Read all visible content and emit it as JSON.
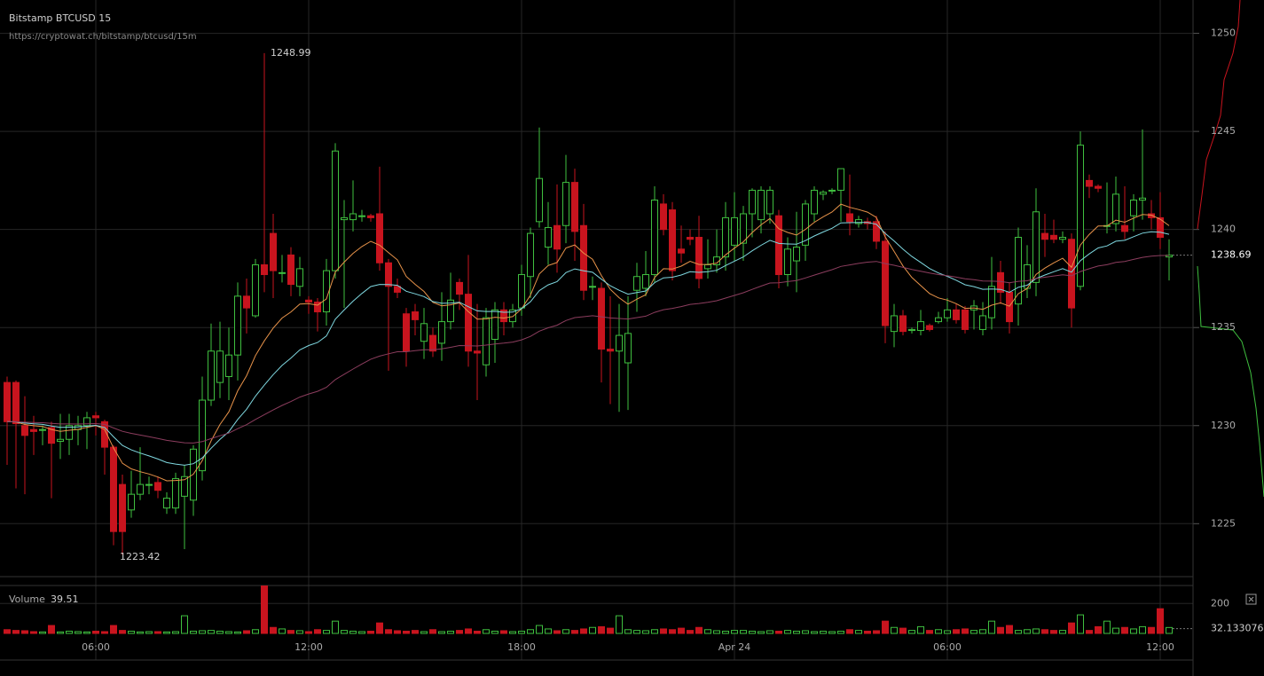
{
  "chart_data": {
    "type": "candlestick",
    "title": "Bitstamp BTCUSD 15",
    "subtitle": "https://cryptowat.ch/bitstamp/btcusd/15m",
    "categories": [
      null,
      null,
      null,
      null,
      null,
      null,
      null,
      null,
      null,
      null,
      "06:00",
      null,
      null,
      null,
      null,
      null,
      null,
      null,
      null,
      null,
      null,
      null,
      null,
      null,
      null,
      null,
      null,
      null,
      null,
      null,
      null,
      null,
      null,
      null,
      "12:00",
      null,
      null,
      null,
      null,
      null,
      null,
      null,
      null,
      null,
      null,
      null,
      null,
      null,
      null,
      null,
      null,
      null,
      null,
      null,
      null,
      null,
      null,
      null,
      "18:00",
      null,
      null,
      null,
      null,
      null,
      null,
      null,
      null,
      null,
      null,
      null,
      null,
      null,
      null,
      null,
      null,
      null,
      null,
      null,
      null,
      null,
      null,
      null,
      "Apr 24",
      null,
      null,
      null,
      null,
      null,
      null,
      null,
      null,
      null,
      null,
      null,
      null,
      null,
      null,
      null,
      null,
      null,
      null,
      null,
      null,
      null,
      null,
      null,
      "06:00",
      null,
      null,
      null,
      null,
      null,
      null,
      null,
      null,
      null,
      null,
      null,
      null,
      null,
      null,
      null,
      null,
      null,
      null,
      null,
      null,
      null,
      null,
      null,
      "12:00",
      null
    ],
    "open": [
      1232.2,
      1232.2,
      1230,
      1229.8,
      1229.8,
      1229.9,
      1229.2,
      1229.3,
      1229.8,
      1230,
      1230.5,
      1230.2,
      1228.9,
      1227,
      1225.7,
      1226.5,
      1227,
      1227.1,
      1225.8,
      1225.8,
      1226.4,
      1226.2,
      1227.7,
      1231.3,
      1232.2,
      1232.5,
      1233.6,
      1236.6,
      1235.6,
      1238.2,
      1239.8,
      1237.8,
      1238.7,
      1237.1,
      1236.4,
      1236.3,
      1235.8,
      1237.9,
      1240.5,
      1240.5,
      1240.7,
      1240.7,
      1240.8,
      1238.3,
      1237.1,
      1235.7,
      1235.8,
      1234.3,
      1234.6,
      1234.2,
      1235.3,
      1237.3,
      1236.7,
      1233.8,
      1233.1,
      1234.4,
      1235.9,
      1235.3,
      1236,
      1237.6,
      1240.4,
      1239.1,
      1240.2,
      1240.2,
      1242.4,
      1240.2,
      1237.1,
      1237,
      1233.9,
      1233.8,
      1233.2,
      1236.9,
      1237,
      1237.7,
      1241.3,
      1241,
      1239,
      1239.6,
      1239.6,
      1238,
      1238.2,
      1238.6,
      1239.2,
      1239.3,
      1240.8,
      1240.5,
      1240.8,
      1240.7,
      1237.7,
      1238.4,
      1239.2,
      1240.8,
      1241.8,
      1242,
      1242,
      1240.8,
      1240.3,
      1240.4,
      1240.4,
      1239.4,
      1234.8,
      1235.6,
      1234.85,
      1234.85,
      1235.1,
      1235.3,
      1235.5,
      1235.9,
      1235.9,
      1235.9,
      1234.9,
      1235.5,
      1237.8,
      1236.8,
      1236.2,
      1237,
      1237.3,
      1239.8,
      1239.7,
      1239.5,
      1239.5,
      1237.1,
      1242.5,
      1242.2,
      1240.2,
      1240.3,
      1240.2,
      1240.7,
      1241.5,
      1240.8,
      1240.6,
      1238.6
    ],
    "high": [
      1232.5,
      1232.3,
      1231.5,
      1230.5,
      1230,
      1230.2,
      1230.6,
      1230.6,
      1230.5,
      1230.7,
      1230.7,
      1230.3,
      1229,
      1227.5,
      1227.7,
      1228.9,
      1227.4,
      1227.4,
      1226.6,
      1227.6,
      1228,
      1229,
      1232.5,
      1235.2,
      1235.3,
      1235,
      1237.3,
      1237.5,
      1238.5,
      1248.99,
      1240.8,
      1238.7,
      1239.1,
      1238.6,
      1236.6,
      1236.5,
      1238.5,
      1244.4,
      1241.5,
      1242.5,
      1241,
      1240.8,
      1243.2,
      1238.5,
      1237.5,
      1236,
      1236.2,
      1236,
      1235,
      1236.8,
      1237.8,
      1237.5,
      1238.7,
      1236.2,
      1236,
      1236.3,
      1236.3,
      1236.2,
      1238.2,
      1240.1,
      1245.2,
      1241.4,
      1242.3,
      1243.8,
      1243.1,
      1241.3,
      1237.6,
      1237.3,
      1236.6,
      1236.2,
      1236.6,
      1238.3,
      1238.9,
      1242.2,
      1241.8,
      1241.4,
      1240.2,
      1240,
      1240.7,
      1239.5,
      1240,
      1241.4,
      1241.9,
      1241.2,
      1242.1,
      1242.2,
      1242.2,
      1241,
      1239.6,
      1240.9,
      1241.5,
      1242.2,
      1242,
      1242.1,
      1243.1,
      1242.8,
      1240.7,
      1240.6,
      1240.7,
      1239.9,
      1236.2,
      1235.9,
      1235,
      1235.9,
      1235.2,
      1235.8,
      1236.5,
      1236.2,
      1236.1,
      1236.4,
      1236.3,
      1238.6,
      1238.4,
      1237.3,
      1240.1,
      1239.2,
      1242.1,
      1240.8,
      1240.5,
      1239.9,
      1239.8,
      1245,
      1242.8,
      1242.3,
      1242.4,
      1242.7,
      1242.2,
      1241.8,
      1245.1,
      1241.5,
      1241.9,
      1239.5
    ],
    "low": [
      1228,
      1226.8,
      1226.5,
      1228.5,
      1229,
      1226.3,
      1228.3,
      1228.5,
      1229,
      1228.8,
      1229.5,
      1227.5,
      1223.9,
      1223.42,
      1225.3,
      1226.2,
      1226.5,
      1226.3,
      1225.5,
      1225.5,
      1223.7,
      1225.4,
      1227.2,
      1231,
      1231.4,
      1231.3,
      1232.3,
      1234.7,
      1235.5,
      1236.8,
      1236.5,
      1237.3,
      1236.6,
      1236.6,
      1235.7,
      1234.8,
      1235.1,
      1237.5,
      1236,
      1239.9,
      1240.4,
      1240.4,
      1237.9,
      1232.8,
      1236.5,
      1233,
      1234.6,
      1233.4,
      1233.5,
      1233.3,
      1234.9,
      1235.9,
      1233,
      1231.3,
      1232.5,
      1233.2,
      1234.6,
      1235,
      1235.6,
      1236.5,
      1240.1,
      1238.2,
      1237.8,
      1239.3,
      1238.4,
      1236.4,
      1236.4,
      1232.2,
      1231.1,
      1230.7,
      1230.8,
      1235.8,
      1236.6,
      1237.3,
      1239.7,
      1237.4,
      1238.3,
      1239.2,
      1237,
      1237.5,
      1237.8,
      1237.9,
      1238.4,
      1238.4,
      1239.6,
      1239.8,
      1240.3,
      1237,
      1237.1,
      1236.8,
      1238.4,
      1240.4,
      1241.5,
      1241.8,
      1240.4,
      1239.7,
      1240.1,
      1240,
      1239,
      1234.2,
      1234,
      1234.6,
      1234.7,
      1234.6,
      1234.8,
      1235.2,
      1235.3,
      1235.2,
      1234.7,
      1234.9,
      1234.6,
      1234.9,
      1236.2,
      1234.7,
      1235.1,
      1236.5,
      1236.6,
      1238.6,
      1239.3,
      1239.3,
      1235,
      1236.9,
      1241.6,
      1241.9,
      1239.8,
      1239.9,
      1239.5,
      1239.9,
      1240.5,
      1240,
      1239,
      1237.4
    ],
    "close": [
      1230.2,
      1230.1,
      1229.5,
      1229.7,
      1229.8,
      1229.1,
      1229.3,
      1230,
      1230,
      1230.4,
      1230.4,
      1228.9,
      1224.6,
      1224.6,
      1226.5,
      1227,
      1227,
      1226.7,
      1226.3,
      1227.3,
      1227.4,
      1228.8,
      1231.3,
      1233.8,
      1233.8,
      1233.6,
      1236.6,
      1236,
      1238.2,
      1237.7,
      1237.9,
      1237.8,
      1237.2,
      1238,
      1236.3,
      1235.8,
      1237.9,
      1244,
      1240.6,
      1240.8,
      1240.7,
      1240.6,
      1238.3,
      1237.1,
      1236.8,
      1233.8,
      1235.4,
      1235.2,
      1233.8,
      1235.3,
      1236.4,
      1236.7,
      1233.8,
      1233.7,
      1235.5,
      1235.9,
      1235.3,
      1235.9,
      1237.7,
      1239.8,
      1242.6,
      1240.1,
      1239,
      1242.4,
      1239.9,
      1236.9,
      1237.1,
      1233.9,
      1233.8,
      1234.6,
      1234.7,
      1237.6,
      1237.7,
      1241.5,
      1240,
      1237.9,
      1238.8,
      1239.5,
      1237.5,
      1238.2,
      1238.6,
      1240.6,
      1240.6,
      1240.8,
      1242,
      1242,
      1242,
      1237.7,
      1239,
      1239.1,
      1241.3,
      1242,
      1241.9,
      1242,
      1243.1,
      1240.4,
      1240.5,
      1240.3,
      1239.4,
      1235.1,
      1235.6,
      1234.8,
      1234.9,
      1235.3,
      1234.9,
      1235.5,
      1235.9,
      1235.4,
      1234.9,
      1236.1,
      1235.6,
      1237.1,
      1236.8,
      1235.3,
      1239.6,
      1238.2,
      1240.9,
      1239.5,
      1239.5,
      1239.6,
      1236,
      1244.3,
      1242.2,
      1242.1,
      1240.2,
      1241.8,
      1239.9,
      1241.5,
      1241.6,
      1240.6,
      1239.6,
      1238.69
    ],
    "volume": [
      25,
      20,
      18,
      12,
      10,
      53,
      10,
      15,
      12,
      10,
      15,
      12,
      53,
      20,
      15,
      10,
      12,
      12,
      10,
      12,
      118,
      15,
      18,
      20,
      15,
      12,
      10,
      18,
      25,
      317,
      40,
      30,
      20,
      18,
      12,
      25,
      20,
      82,
      20,
      15,
      12,
      15,
      70,
      25,
      18,
      15,
      20,
      12,
      25,
      12,
      15,
      20,
      30,
      15,
      25,
      15,
      18,
      12,
      15,
      25,
      53,
      30,
      18,
      25,
      20,
      30,
      40,
      45,
      35,
      118,
      25,
      20,
      18,
      25,
      30,
      25,
      35,
      20,
      40,
      25,
      18,
      15,
      20,
      20,
      15,
      12,
      18,
      15,
      20,
      15,
      18,
      12,
      15,
      12,
      15,
      25,
      20,
      15,
      18,
      82,
      40,
      35,
      20,
      45,
      20,
      25,
      18,
      25,
      30,
      20,
      25,
      82,
      40,
      53,
      20,
      25,
      30,
      25,
      20,
      20,
      70,
      124,
      20,
      45,
      82,
      35,
      40,
      30,
      45,
      40,
      165,
      39.51
    ],
    "up_color": "#3fbf3f",
    "down_color": "#c8141e",
    "ylim": [
      1222.3,
      1251.7
    ],
    "yticks": [
      1225,
      1230,
      1235,
      1240,
      1245,
      1250
    ],
    "volume_title": "Volume",
    "vlim": [
      0,
      320
    ],
    "vticks": [
      200
    ],
    "volume_ma": 32.133076,
    "grid": true
  }
}
